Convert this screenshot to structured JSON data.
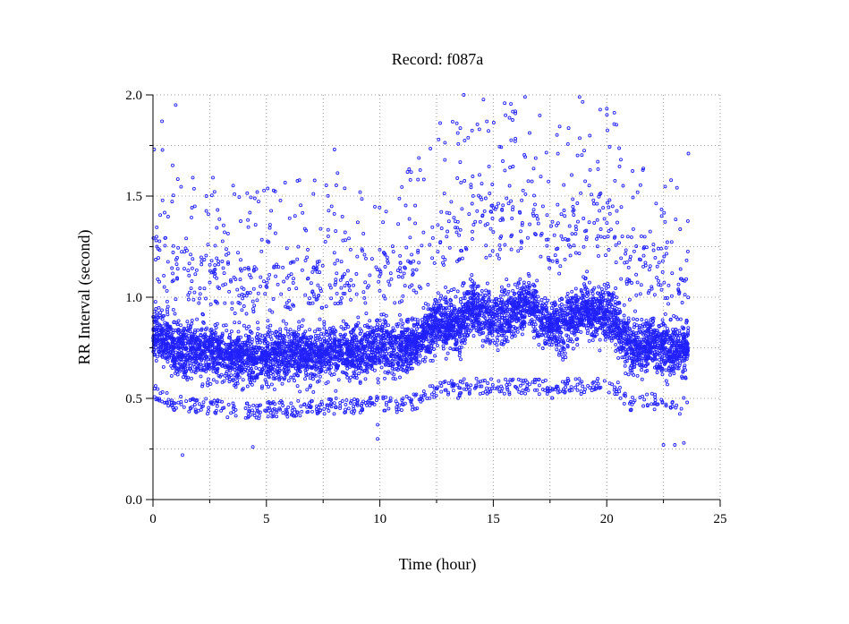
{
  "chart_data": {
    "type": "scatter",
    "title": "Record:  f087a",
    "xlabel": "Time (hour)",
    "ylabel": "RR Interval (second)",
    "xlim": [
      0,
      25
    ],
    "ylim": [
      0,
      2.0
    ],
    "xticks": [
      0,
      5,
      10,
      15,
      20,
      25
    ],
    "xtick_labels": [
      "0",
      "5",
      "10",
      "15",
      "20",
      "25"
    ],
    "yticks": [
      0.0,
      0.5,
      1.0,
      1.5,
      2.0
    ],
    "ytick_labels": [
      "0.0",
      "0.5",
      "1.0",
      "1.5",
      "2.0"
    ],
    "grid": true,
    "marker_color": "#2020ff",
    "series": [
      {
        "profile": [
          {
            "x": 0.0,
            "y": 0.84
          },
          {
            "x": 0.5,
            "y": 0.8
          },
          {
            "x": 1.0,
            "y": 0.76
          },
          {
            "x": 2.0,
            "y": 0.74
          },
          {
            "x": 3.0,
            "y": 0.72
          },
          {
            "x": 4.0,
            "y": 0.7
          },
          {
            "x": 5.0,
            "y": 0.71
          },
          {
            "x": 6.0,
            "y": 0.72
          },
          {
            "x": 7.0,
            "y": 0.72
          },
          {
            "x": 7.5,
            "y": 0.73
          },
          {
            "x": 8.0,
            "y": 0.74
          },
          {
            "x": 9.0,
            "y": 0.73
          },
          {
            "x": 10.0,
            "y": 0.76
          },
          {
            "x": 11.0,
            "y": 0.74
          },
          {
            "x": 12.0,
            "y": 0.8
          },
          {
            "x": 12.5,
            "y": 0.86
          },
          {
            "x": 13.0,
            "y": 0.87
          },
          {
            "x": 13.5,
            "y": 0.85
          },
          {
            "x": 14.0,
            "y": 0.96
          },
          {
            "x": 14.5,
            "y": 0.93
          },
          {
            "x": 15.0,
            "y": 0.88
          },
          {
            "x": 15.5,
            "y": 0.92
          },
          {
            "x": 16.0,
            "y": 0.92
          },
          {
            "x": 16.5,
            "y": 0.97
          },
          {
            "x": 17.0,
            "y": 0.92
          },
          {
            "x": 17.5,
            "y": 0.85
          },
          {
            "x": 18.0,
            "y": 0.86
          },
          {
            "x": 18.5,
            "y": 0.9
          },
          {
            "x": 19.0,
            "y": 0.96
          },
          {
            "x": 19.5,
            "y": 0.92
          },
          {
            "x": 20.0,
            "y": 0.92
          },
          {
            "x": 20.5,
            "y": 0.86
          },
          {
            "x": 21.0,
            "y": 0.75
          },
          {
            "x": 22.0,
            "y": 0.77
          },
          {
            "x": 23.0,
            "y": 0.73
          },
          {
            "x": 23.6,
            "y": 0.75
          }
        ],
        "x_range": [
          0,
          23.6
        ],
        "n_points": 7000
      }
    ],
    "notable_points": [
      {
        "x": 1.3,
        "y": 0.22
      },
      {
        "x": 4.4,
        "y": 0.26
      },
      {
        "x": 9.9,
        "y": 0.3
      },
      {
        "x": 9.9,
        "y": 0.37
      },
      {
        "x": 22.5,
        "y": 0.27
      },
      {
        "x": 23.0,
        "y": 0.27
      },
      {
        "x": 23.4,
        "y": 0.28
      },
      {
        "x": 1.0,
        "y": 1.95
      },
      {
        "x": 0.4,
        "y": 1.87
      },
      {
        "x": 13.7,
        "y": 2.0
      },
      {
        "x": 16.4,
        "y": 1.99
      },
      {
        "x": 18.8,
        "y": 1.99
      },
      {
        "x": 8.0,
        "y": 1.73
      },
      {
        "x": 23.6,
        "y": 1.71
      }
    ]
  }
}
